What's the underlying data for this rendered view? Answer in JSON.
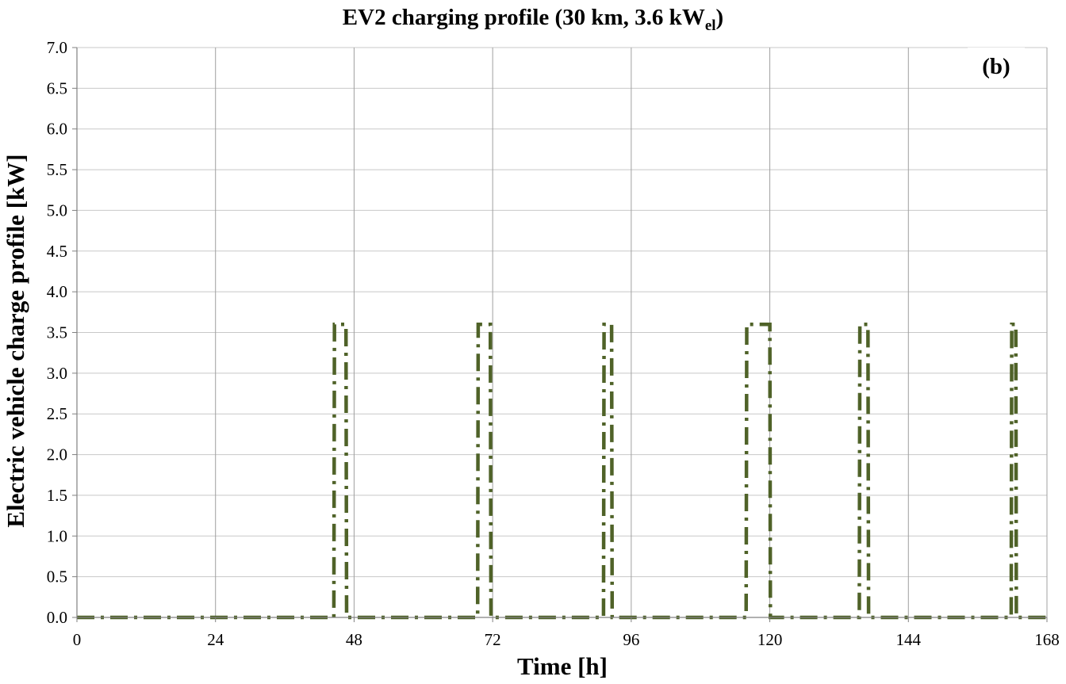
{
  "chart_data": {
    "type": "line",
    "title_main": "EV2 charging profile (30 km, 3.6 kW",
    "title_sub": "el",
    "title_end": ")",
    "panel_label": "(b)",
    "xlabel": "Time [h]",
    "ylabel": "Electric vehicle charge profile [kW]",
    "xlim": [
      0,
      168
    ],
    "ylim": [
      0,
      7
    ],
    "xticks": [
      0,
      24,
      48,
      72,
      96,
      120,
      144,
      168
    ],
    "yticks": [
      "0.0",
      "0.5",
      "1.0",
      "1.5",
      "2.0",
      "2.5",
      "3.0",
      "3.5",
      "4.0",
      "4.5",
      "5.0",
      "5.5",
      "6.0",
      "6.5",
      "7.0"
    ],
    "grid": true,
    "line_color": "#4f6228",
    "series": [
      {
        "points": [
          [
            0,
            0
          ],
          [
            44.5,
            0
          ],
          [
            44.6,
            3.6
          ],
          [
            46.6,
            3.6
          ],
          [
            46.7,
            0
          ],
          [
            69.4,
            0
          ],
          [
            69.5,
            3.6
          ],
          [
            71.6,
            3.6
          ],
          [
            71.7,
            0
          ],
          [
            91.2,
            0
          ],
          [
            91.3,
            3.6
          ],
          [
            92.6,
            3.6
          ],
          [
            92.7,
            0
          ],
          [
            115.9,
            0
          ],
          [
            116.0,
            3.6
          ],
          [
            120.0,
            3.6
          ],
          [
            120.1,
            0
          ],
          [
            135.5,
            0
          ],
          [
            135.6,
            3.6
          ],
          [
            137.0,
            3.6
          ],
          [
            137.1,
            0
          ],
          [
            161.8,
            0
          ],
          [
            161.9,
            3.6
          ],
          [
            162.6,
            3.6
          ],
          [
            162.7,
            0
          ],
          [
            168,
            0
          ]
        ]
      }
    ]
  }
}
